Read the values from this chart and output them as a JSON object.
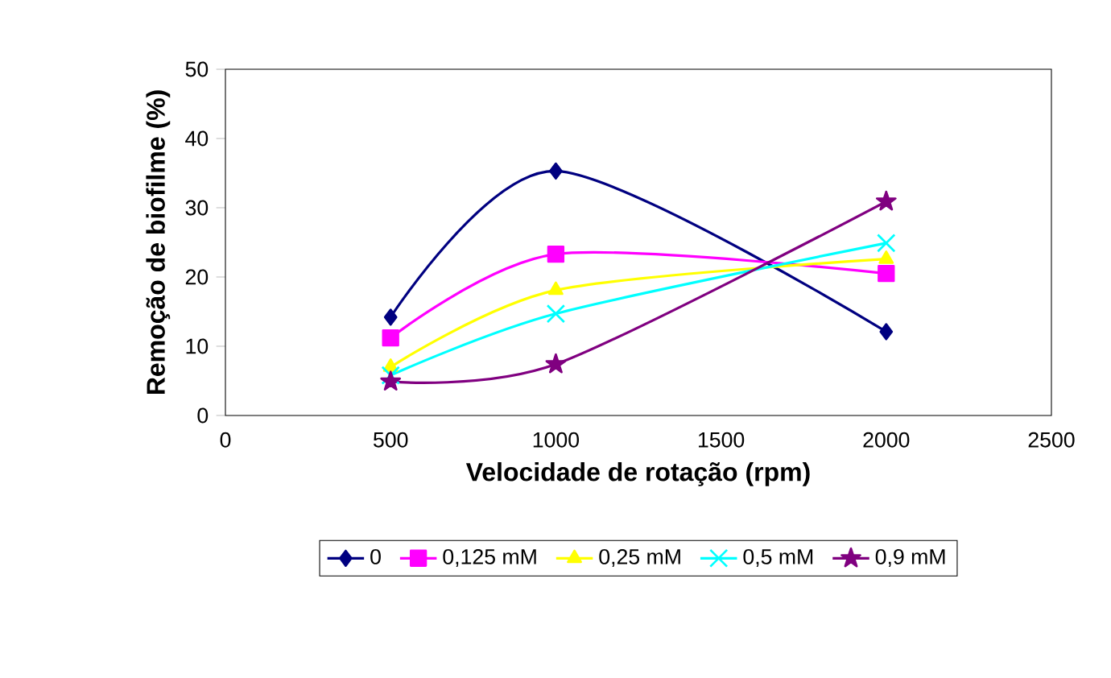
{
  "chart_data": {
    "type": "line",
    "xlabel": "Velocidade de rotação (rpm)",
    "ylabel": "Remoção de biofilme (%)",
    "x": [
      500,
      1000,
      2000
    ],
    "series": [
      {
        "name": "0",
        "color": "#000080",
        "marker": "diamond",
        "values": [
          14.2,
          35.3,
          12.1
        ]
      },
      {
        "name": "0,125 mM",
        "color": "#ff00ff",
        "marker": "square",
        "values": [
          11.2,
          23.3,
          20.5
        ]
      },
      {
        "name": "0,25 mM",
        "color": "#ffff00",
        "marker": "triangle",
        "values": [
          7,
          18.1,
          22.6
        ]
      },
      {
        "name": "0,5 mM",
        "color": "#00ffff",
        "marker": "cross",
        "values": [
          5.8,
          14.7,
          24.9
        ]
      },
      {
        "name": "0,9 mM",
        "color": "#800080",
        "marker": "star",
        "values": [
          4.9,
          7.4,
          30.9
        ]
      }
    ],
    "xlim": [
      0,
      2500
    ],
    "xticks": [
      0,
      500,
      1000,
      1500,
      2000,
      2500
    ],
    "ylim": [
      0,
      50
    ],
    "yticks": [
      0,
      10,
      20,
      30,
      40,
      50
    ],
    "grid": false,
    "legend": "bottom",
    "line_style": "solid"
  }
}
